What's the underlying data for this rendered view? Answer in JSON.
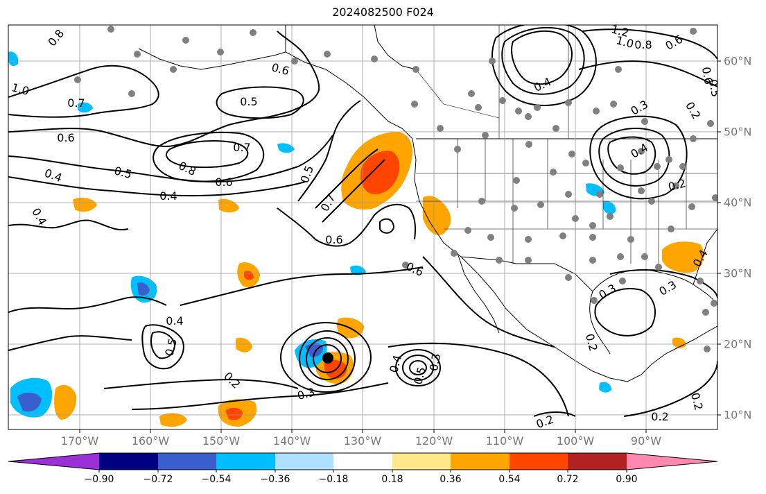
{
  "title": "2024082500 F024",
  "lon_labels": [
    "170°W",
    "160°W",
    "150°W",
    "140°W",
    "130°W",
    "120°W",
    "110°W",
    "100°W",
    "90°W"
  ],
  "lat_labels": [
    "60°N",
    "50°N",
    "40°N",
    "30°N",
    "20°N",
    "10°N"
  ],
  "colorbar": {
    "tick_labels": [
      "−0.90",
      "−0.72",
      "−0.54",
      "−0.36",
      "−0.18",
      "0.18",
      "0.36",
      "0.54",
      "0.72",
      "0.90"
    ],
    "colors": [
      "#9b30d9",
      "#000080",
      "#3a5fcd",
      "#00bfff",
      "#b0e0ff",
      "#ffffff",
      "#ffe98a",
      "#ffa500",
      "#ff4500",
      "#b22222",
      "#ff88b0"
    ]
  },
  "contour_labels": [
    "0.8",
    "1.0",
    "0.7",
    "0.6",
    "0.4",
    "0.4",
    "0.5",
    "0.7",
    "0.8",
    "0.6",
    "0.4",
    "0.5",
    "0.6",
    "0.5",
    "0.7",
    "0.6",
    "0.6",
    "0.4",
    "0.5",
    "0.2",
    "0.3",
    "0.4",
    "0.5",
    "0.3",
    "0.2",
    "0.2",
    "0.3",
    "0.3",
    "0.2",
    "0.2",
    "0.4",
    "0.4",
    "1.2",
    "1.0",
    "0.8",
    "0.6",
    "0.6",
    "0.5",
    "0.2",
    "0.3",
    "0.4",
    "0.2"
  ]
}
